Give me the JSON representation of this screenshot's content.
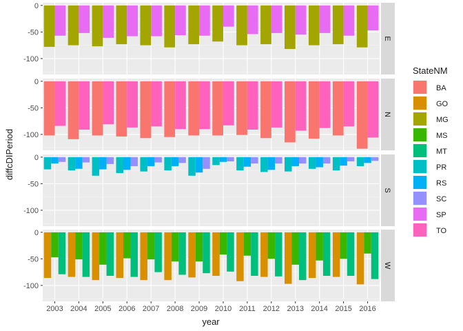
{
  "chart_data": {
    "type": "bar",
    "layout": "faceted rows, dodged bars",
    "xlabel": "year",
    "ylabel": "diffcDIPeriod",
    "ylim": [
      -130,
      5
    ],
    "yticks": [
      0,
      -50,
      -100
    ],
    "ytick_labels": [
      "0",
      "-50",
      "-100"
    ],
    "legend_title": "StateNM",
    "legend_position": "right",
    "grid": true,
    "categories": [
      "2003",
      "2004",
      "2005",
      "2006",
      "2007",
      "2008",
      "2009",
      "2010",
      "2011",
      "2012",
      "2013",
      "2014",
      "2015",
      "2016"
    ],
    "series": [
      {
        "name": "BA",
        "color": "#F8766D"
      },
      {
        "name": "GO",
        "color": "#D89000"
      },
      {
        "name": "MG",
        "color": "#A3A500"
      },
      {
        "name": "MS",
        "color": "#39B600"
      },
      {
        "name": "MT",
        "color": "#00BF7D"
      },
      {
        "name": "PR",
        "color": "#00BFC4"
      },
      {
        "name": "RS",
        "color": "#00B0F6"
      },
      {
        "name": "SC",
        "color": "#9590FF"
      },
      {
        "name": "SP",
        "color": "#E76BF3"
      },
      {
        "name": "TO",
        "color": "#FF62BC"
      }
    ],
    "facets": [
      {
        "label": "E",
        "series": [
          {
            "name": "MG",
            "values": [
              -78,
              -75,
              -77,
              -73,
              -75,
              -79,
              -73,
              -68,
              -75,
              -73,
              -82,
              -75,
              -73,
              -79
            ]
          },
          {
            "name": "SP",
            "values": [
              -57,
              -52,
              -61,
              -58,
              -58,
              -56,
              -57,
              -40,
              -54,
              -52,
              -55,
              -52,
              -57,
              -47
            ]
          }
        ]
      },
      {
        "label": "N",
        "series": [
          {
            "name": "BA",
            "values": [
              -102,
              -109,
              -102,
              -104,
              -107,
              -105,
              -102,
              -102,
              -101,
              -107,
              -115,
              -108,
              -102,
              -127
            ]
          },
          {
            "name": "TO",
            "values": [
              -84,
              -91,
              -81,
              -87,
              -85,
              -90,
              -90,
              -83,
              -91,
              -87,
              -93,
              -88,
              -85,
              -106
            ]
          }
        ]
      },
      {
        "label": "S",
        "series": [
          {
            "name": "PR",
            "values": [
              -23,
              -25,
              -35,
              -30,
              -27,
              -25,
              -35,
              -15,
              -25,
              -28,
              -27,
              -22,
              -25,
              -17
            ]
          },
          {
            "name": "RS",
            "values": [
              -12,
              -22,
              -23,
              -24,
              -17,
              -17,
              -29,
              -9,
              -18,
              -24,
              -17,
              -19,
              -16,
              -11
            ]
          },
          {
            "name": "SC",
            "values": [
              -9,
              -10,
              -13,
              -17,
              -10,
              -11,
              -22,
              -8,
              -12,
              -12,
              -12,
              -12,
              -8,
              -7
            ]
          }
        ]
      },
      {
        "label": "W",
        "series": [
          {
            "name": "GO",
            "values": [
              -86,
              -84,
              -90,
              -86,
              -90,
              -90,
              -85,
              -82,
              -92,
              -84,
              -97,
              -86,
              -84,
              -98
            ]
          },
          {
            "name": "MS",
            "values": [
              -47,
              -51,
              -61,
              -49,
              -51,
              -55,
              -55,
              -42,
              -44,
              -50,
              -61,
              -53,
              -50,
              -40
            ]
          },
          {
            "name": "MT",
            "values": [
              -79,
              -84,
              -82,
              -84,
              -75,
              -80,
              -77,
              -74,
              -82,
              -83,
              -90,
              -82,
              -82,
              -88
            ]
          }
        ]
      }
    ]
  }
}
